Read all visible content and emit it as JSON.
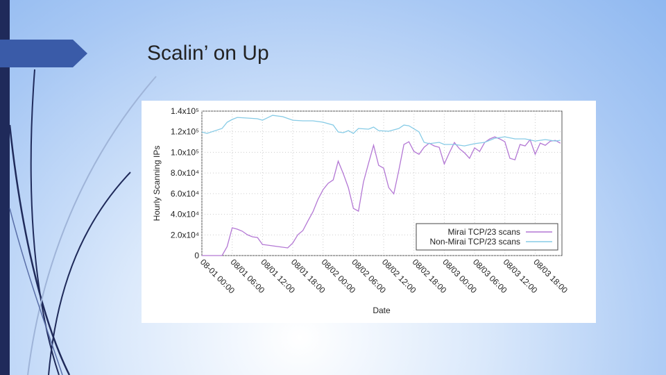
{
  "slide_title": "Scalin’ on Up",
  "chart_data": {
    "type": "line",
    "x_label": "Date",
    "y_label": "Hourly Scanning IPs",
    "xlim": [
      0,
      71.3
    ],
    "ylim": [
      0,
      140000
    ],
    "xticks": [
      {
        "value": 0,
        "label": "08-01 00:00"
      },
      {
        "value": 6,
        "label": "08/01 06:00"
      },
      {
        "value": 12,
        "label": "08/01 12:00"
      },
      {
        "value": 18,
        "label": "08/01 18:00"
      },
      {
        "value": 24,
        "label": "08/02 00:00"
      },
      {
        "value": 30,
        "label": "08/02 06:00"
      },
      {
        "value": 36,
        "label": "08/02 12:00"
      },
      {
        "value": 42,
        "label": "08/02 18:00"
      },
      {
        "value": 48,
        "label": "08/03 00:00"
      },
      {
        "value": 54,
        "label": "08/03 06:00"
      },
      {
        "value": 60,
        "label": "08/03 12:00"
      },
      {
        "value": 66,
        "label": "08/03 18:00"
      }
    ],
    "yticks": [
      0,
      {
        "value": 20000,
        "label": "2.0x10⁴"
      },
      {
        "value": 40000,
        "label": "4.0x10⁴"
      },
      {
        "value": 60000,
        "label": "6.0x10⁴"
      },
      {
        "value": 80000,
        "label": "8.0x10⁴"
      },
      {
        "value": 100000,
        "label": "1.0x10⁵"
      },
      {
        "value": 120000,
        "label": "1.2x10⁵"
      },
      {
        "value": 140000,
        "label": "1.4x10⁵"
      }
    ],
    "grid": true,
    "legend": "lower right",
    "series": [
      {
        "name": "Mirai TCP/23 scans",
        "color": "#b377d4",
        "x": [
          0,
          4,
          5,
          6,
          7,
          8,
          9,
          10,
          11,
          12,
          14,
          17,
          18,
          19,
          20,
          21,
          22,
          23,
          24,
          25,
          26,
          27,
          28,
          29,
          30,
          31,
          32,
          33,
          34,
          35,
          36,
          37,
          38,
          39,
          40,
          41,
          42,
          43,
          44,
          45,
          46,
          47,
          48,
          49,
          50,
          51,
          52,
          53,
          54,
          55,
          56,
          57,
          58,
          59,
          60,
          61,
          62,
          63,
          64,
          65,
          66,
          67,
          68,
          69,
          70,
          71
        ],
        "values": [
          0,
          0,
          8700,
          26900,
          25600,
          23600,
          20200,
          18200,
          17500,
          10800,
          9400,
          7400,
          12100,
          20200,
          24200,
          33600,
          42400,
          54500,
          63900,
          70000,
          73300,
          91500,
          79400,
          65900,
          45700,
          43000,
          71300,
          89400,
          106900,
          87400,
          84700,
          65900,
          59800,
          82700,
          107600,
          110300,
          100900,
          98200,
          104900,
          109000,
          106300,
          104900,
          88800,
          99600,
          109600,
          103600,
          99600,
          94200,
          104300,
          100900,
          109600,
          113000,
          115000,
          113000,
          110300,
          94200,
          92800,
          107600,
          106300,
          112300,
          98200,
          109000,
          106900,
          110900,
          111600,
          108900
        ]
      },
      {
        "name": "Non-Mirai TCP/23 scans",
        "color": "#86cbe6",
        "x": [
          0,
          1,
          4,
          5,
          6,
          7,
          9,
          11,
          12,
          14,
          16,
          18,
          20,
          22,
          24,
          26,
          27,
          28,
          29,
          30,
          31,
          33,
          34,
          35,
          37,
          39,
          40,
          41,
          43,
          44,
          45,
          47,
          48,
          50,
          52,
          54,
          56,
          58,
          60,
          62,
          64,
          66,
          68,
          70,
          71
        ],
        "values": [
          119800,
          118400,
          123200,
          129200,
          131900,
          133900,
          133300,
          132600,
          131200,
          135900,
          134600,
          131200,
          130600,
          130600,
          129200,
          126500,
          119800,
          119100,
          121100,
          118400,
          123200,
          122500,
          124500,
          121100,
          120500,
          123200,
          126500,
          125800,
          119800,
          109700,
          108400,
          109700,
          107700,
          107700,
          106300,
          108400,
          109700,
          113700,
          115100,
          113100,
          113100,
          111000,
          112400,
          111000,
          111700
        ]
      }
    ]
  }
}
